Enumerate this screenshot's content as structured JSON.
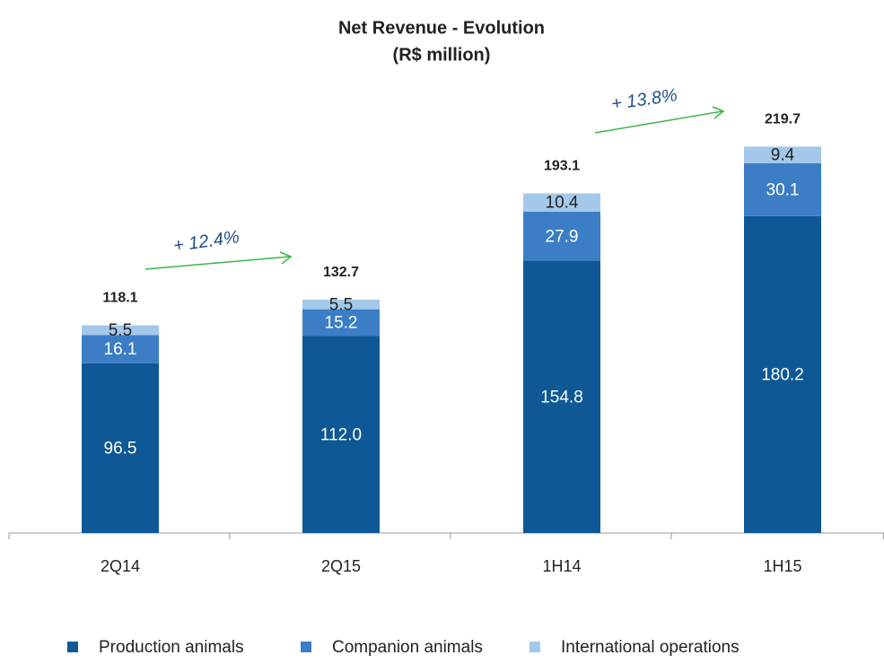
{
  "chart_data": {
    "type": "stacked_bar",
    "title": "Net Revenue - Evolution",
    "subtitle": "(R$ million)",
    "categories": [
      "2Q14",
      "2Q15",
      "1H14",
      "1H15"
    ],
    "series": [
      {
        "name": "Production animals",
        "color": "#0e5896",
        "values": [
          96.5,
          112.0,
          154.8,
          180.2
        ],
        "value_labels": [
          "96.5",
          "112.0",
          "154.8",
          "180.2"
        ]
      },
      {
        "name": "Companion animals",
        "color": "#3b7ec6",
        "values": [
          16.1,
          15.2,
          27.9,
          30.1
        ]
      },
      {
        "name": "International operations",
        "color": "#a3c8ea",
        "values": [
          5.5,
          5.5,
          10.4,
          9.4
        ]
      }
    ],
    "totals": [
      118.1,
      132.7,
      193.1,
      219.7
    ],
    "annotations": [
      "+ 12.4%",
      "+ 13.8%"
    ],
    "ylim": [
      0,
      250
    ],
    "legend": "bottom"
  }
}
